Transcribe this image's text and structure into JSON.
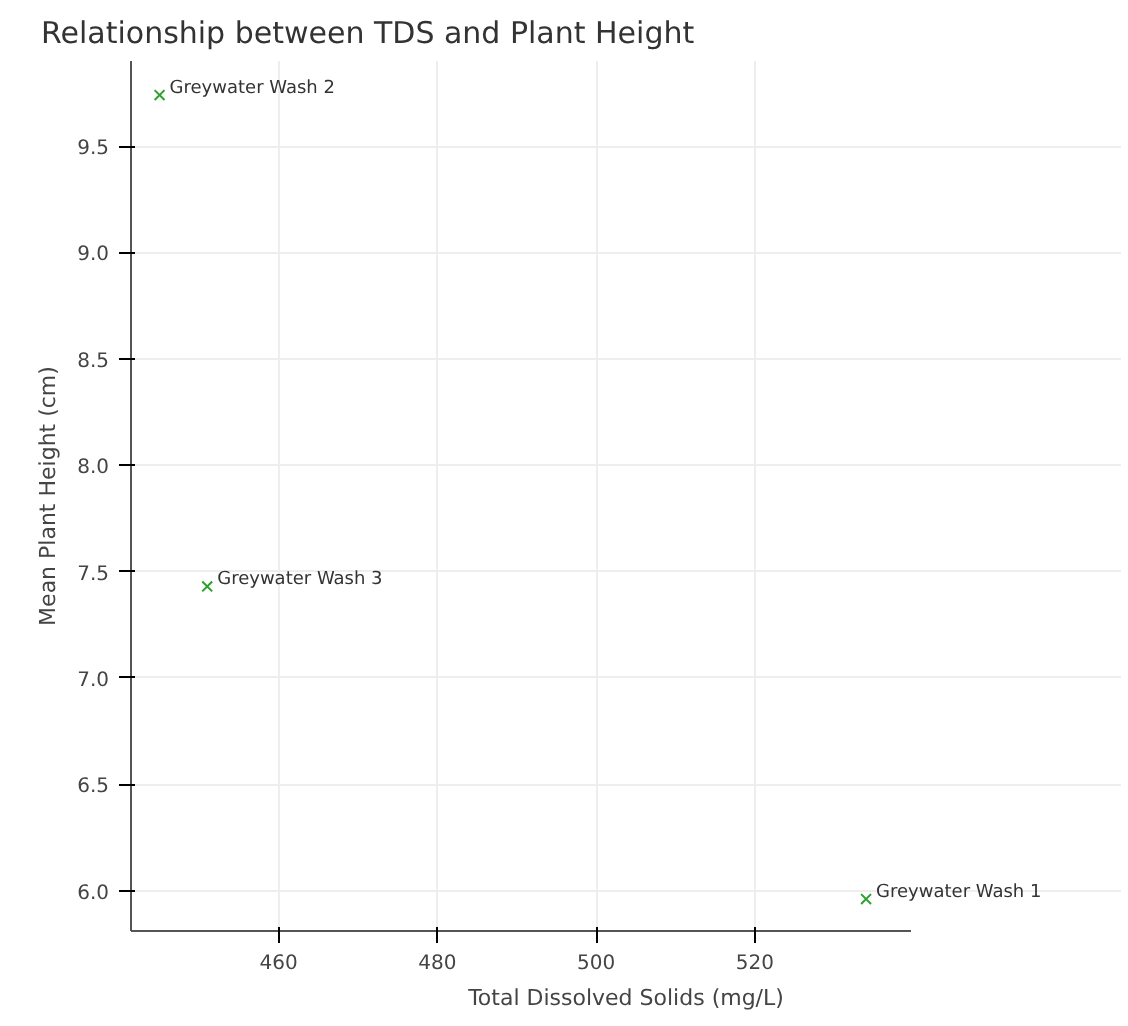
{
  "chart_data": {
    "type": "scatter",
    "title": "Relationship between TDS and Plant Height",
    "xlabel": "Total Dissolved Solids (mg/L)",
    "ylabel": "Mean Plant Height (cm)",
    "x": [
      534,
      445,
      451
    ],
    "series": [
      {
        "color": "#2ca02c",
        "values": [
          5.96,
          9.74,
          7.43
        ]
      }
    ],
    "annotations": [
      {
        "text": "Greywater Wash 1",
        "x": 534,
        "y": 5.96
      },
      {
        "text": "Greywater Wash 2",
        "x": 445,
        "y": 9.74
      },
      {
        "text": "Greywater Wash 3",
        "x": 451,
        "y": 7.43
      }
    ],
    "xlim": [
      441.4,
      539.6
    ],
    "ylim": [
      5.81,
      9.9
    ],
    "xticks": [
      460,
      480,
      500,
      520
    ],
    "yticks": [
      {
        "value": 6,
        "label": "6.0"
      },
      6.5,
      {
        "value": 7,
        "label": "7.0"
      },
      7.5,
      {
        "value": 8,
        "label": "8.0"
      },
      8.5,
      {
        "value": 9,
        "label": "9.0"
      },
      9.5
    ],
    "marker": "cross",
    "grid": true
  }
}
